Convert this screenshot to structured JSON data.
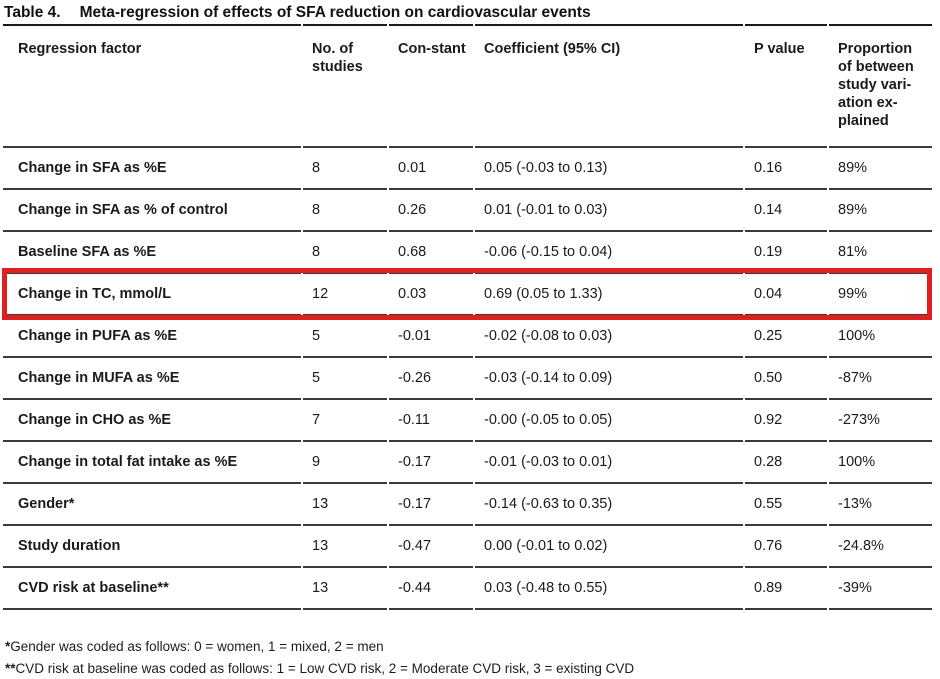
{
  "page": {
    "title_label": "Table 4.",
    "title_text": "Meta-regression of effects of SFA reduction on cardiovascular events"
  },
  "table": {
    "columns": [
      "Regression factor",
      "No. of studies",
      "Con-stant",
      "Coefficient (95% CI)",
      "P value",
      "Proportion of between study vari-ation ex-plained"
    ],
    "rows": [
      {
        "factor": "Change in SFA as %E",
        "studies": "8",
        "constant": "0.01",
        "coefficient": "0.05 (-0.03 to 0.13)",
        "p_value": "0.16",
        "proportion": "89%",
        "highlighted": false
      },
      {
        "factor": "Change in SFA as % of control",
        "studies": "8",
        "constant": "0.26",
        "coefficient": "0.01 (-0.01 to 0.03)",
        "p_value": "0.14",
        "proportion": "89%",
        "highlighted": false
      },
      {
        "factor": "Baseline SFA as %E",
        "studies": "8",
        "constant": "0.68",
        "coefficient": "-0.06 (-0.15 to 0.04)",
        "p_value": "0.19",
        "proportion": "81%",
        "highlighted": false
      },
      {
        "factor": "Change in TC, mmol/L",
        "studies": "12",
        "constant": "0.03",
        "coefficient": "0.69 (0.05 to 1.33)",
        "p_value": "0.04",
        "proportion": "99%",
        "highlighted": true
      },
      {
        "factor": "Change in PUFA as %E",
        "studies": "5",
        "constant": "-0.01",
        "coefficient": "-0.02 (-0.08 to 0.03)",
        "p_value": "0.25",
        "proportion": "100%",
        "highlighted": false
      },
      {
        "factor": "Change in MUFA as %E",
        "studies": "5",
        "constant": "-0.26",
        "coefficient": "-0.03 (-0.14 to 0.09)",
        "p_value": "0.50",
        "proportion": "-87%",
        "highlighted": false
      },
      {
        "factor": "Change in CHO as %E",
        "studies": "7",
        "constant": "-0.11",
        "coefficient": "-0.00 (-0.05 to 0.05)",
        "p_value": "0.92",
        "proportion": "-273%",
        "highlighted": false
      },
      {
        "factor": "Change in total fat intake as %E",
        "studies": "9",
        "constant": "-0.17",
        "coefficient": "-0.01 (-0.03 to 0.01)",
        "p_value": "0.28",
        "proportion": "100%",
        "highlighted": false
      },
      {
        "factor": "Gender*",
        "studies": "13",
        "constant": "-0.17",
        "coefficient": "-0.14 (-0.63 to 0.35)",
        "p_value": "0.55",
        "proportion": "-13%",
        "highlighted": false
      },
      {
        "factor": "Study duration",
        "studies": "13",
        "constant": "-0.47",
        "coefficient": "0.00 (-0.01 to 0.02)",
        "p_value": "0.76",
        "proportion": "-24.8%",
        "highlighted": false
      },
      {
        "factor": "CVD risk at baseline**",
        "studies": "13",
        "constant": "-0.44",
        "coefficient": "0.03 (-0.48 to 0.55)",
        "p_value": "0.89",
        "proportion": "-39%",
        "highlighted": false
      }
    ]
  },
  "footnotes": [
    {
      "marker": "*",
      "text": "Gender was coded as follows: 0 = women, 1 = mixed, 2 = men"
    },
    {
      "marker": "**",
      "text": "CVD risk at baseline was coded as follows: 1 = Low CVD risk, 2 = Moderate CVD risk, 3 = existing CVD"
    }
  ],
  "colors": {
    "highlight_border": "#e01f1f",
    "rule": "#3a3a3a",
    "text": "#1a1a1a"
  }
}
